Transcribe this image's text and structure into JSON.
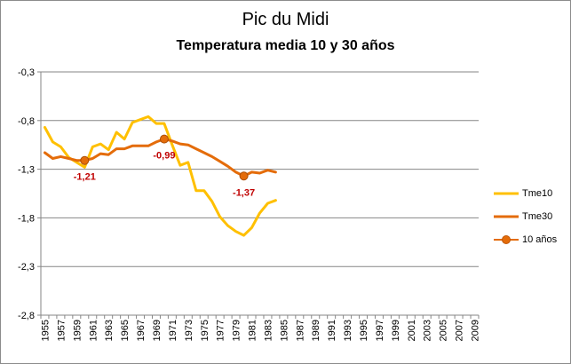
{
  "title": "Pic du Midi",
  "subtitle": "Temperatura media 10 y 30 años",
  "colors": {
    "tme10": "#FFC000",
    "tme30": "#E46C0A",
    "marker": "#E46C0A",
    "annotation": "#C00000",
    "grid": "#868686",
    "axis": "#868686"
  },
  "chart_data": {
    "type": "line",
    "title": "Pic du Midi",
    "subtitle": "Temperatura media 10 y 30 años",
    "x_categories": [
      "1955",
      "1957",
      "1959",
      "1961",
      "1963",
      "1965",
      "1967",
      "1969",
      "1971",
      "1973",
      "1975",
      "1977",
      "1979",
      "1981",
      "1983",
      "1985",
      "1987",
      "1989",
      "1991",
      "1993",
      "1995",
      "1997",
      "1999",
      "2001",
      "2003",
      "2005",
      "2007",
      "2009"
    ],
    "x_range": [
      1955,
      2010
    ],
    "ylim": [
      -2.8,
      -0.3
    ],
    "yticks": [
      "-0,3",
      "-0,8",
      "-1,3",
      "-1,8",
      "-2,3",
      "-2,8"
    ],
    "grid": true,
    "legend_position": "right",
    "series": [
      {
        "name": "Tme10",
        "x": [
          1955,
          1956,
          1957,
          1958,
          1959,
          1960,
          1961,
          1962,
          1963,
          1964,
          1965,
          1966,
          1967,
          1968,
          1969,
          1970,
          1971,
          1972,
          1973,
          1974,
          1975,
          1976,
          1977,
          1978,
          1979,
          1980,
          1981,
          1982,
          1983,
          1984
        ],
        "y": [
          -0.87,
          -1.02,
          -1.07,
          -1.18,
          -1.23,
          -1.28,
          -1.07,
          -1.04,
          -1.1,
          -0.92,
          -0.99,
          -0.82,
          -0.79,
          -0.76,
          -0.83,
          -0.83,
          -1.05,
          -1.26,
          -1.23,
          -1.52,
          -1.52,
          -1.63,
          -1.79,
          -1.88,
          -1.94,
          -1.98,
          -1.9,
          -1.75,
          -1.65,
          -1.62
        ]
      },
      {
        "name": "Tme30",
        "x": [
          1955,
          1956,
          1957,
          1958,
          1959,
          1960,
          1961,
          1962,
          1963,
          1964,
          1965,
          1966,
          1967,
          1968,
          1969,
          1970,
          1971,
          1972,
          1973,
          1974,
          1975,
          1976,
          1977,
          1978,
          1979,
          1980,
          1981,
          1982,
          1983,
          1984
        ],
        "y": [
          -1.13,
          -1.19,
          -1.17,
          -1.19,
          -1.21,
          -1.21,
          -1.19,
          -1.14,
          -1.15,
          -1.09,
          -1.09,
          -1.06,
          -1.06,
          -1.06,
          -1.02,
          -0.99,
          -1.01,
          -1.04,
          -1.05,
          -1.09,
          -1.13,
          -1.17,
          -1.22,
          -1.27,
          -1.33,
          -1.37,
          -1.33,
          -1.34,
          -1.31,
          -1.33
        ]
      },
      {
        "name": "10 años",
        "x": [
          1960,
          1970,
          1980
        ],
        "y": [
          -1.21,
          -0.99,
          -1.37
        ],
        "labels": [
          "-1,21",
          "-0,99",
          "-1,37"
        ]
      }
    ]
  }
}
